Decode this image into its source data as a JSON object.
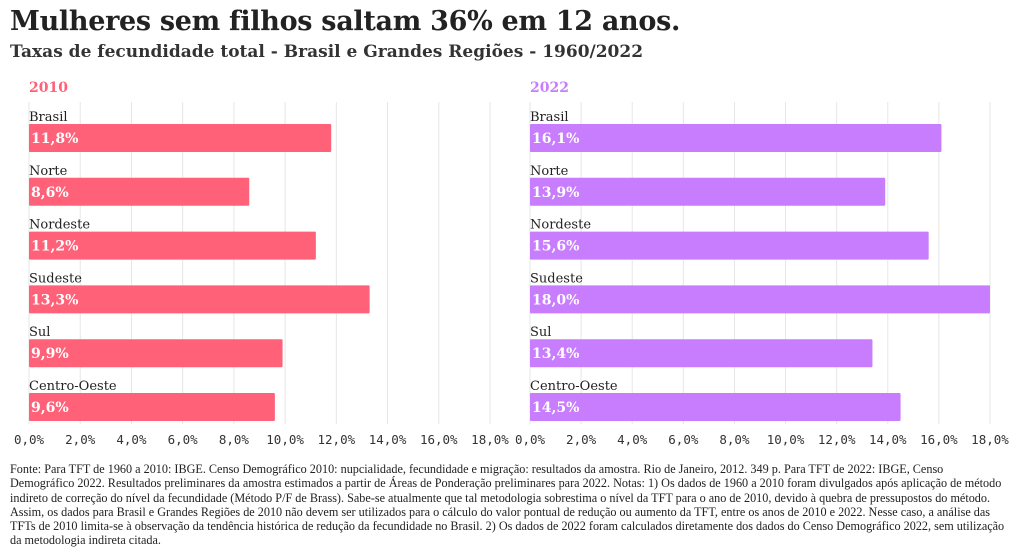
{
  "title": "Mulheres sem filhos saltam 36% em 12 anos.",
  "subtitle": "Taxas de fecundidade total - Brasil e Grandes Regiões - 1960/2022",
  "chart_data": [
    {
      "type": "bar",
      "orientation": "horizontal",
      "title": "2010",
      "categories": [
        "Brasil",
        "Norte",
        "Nordeste",
        "Sudeste",
        "Sul",
        "Centro-Oeste"
      ],
      "values": [
        11.8,
        8.6,
        11.2,
        13.3,
        9.9,
        9.6
      ],
      "value_labels": [
        "11,8%",
        "8,6%",
        "11,2%",
        "13,3%",
        "9,9%",
        "9,6%"
      ],
      "xlim": [
        0,
        18
      ],
      "ticks": [
        "0,0%",
        "2,0%",
        "4,0%",
        "6,0%",
        "8,0%",
        "10,0%",
        "12,0%",
        "14,0%",
        "16,0%",
        "18,0%"
      ],
      "grid": true,
      "color": "#ff6178"
    },
    {
      "type": "bar",
      "orientation": "horizontal",
      "title": "2022",
      "categories": [
        "Brasil",
        "Norte",
        "Nordeste",
        "Sudeste",
        "Sul",
        "Centro-Oeste"
      ],
      "values": [
        16.1,
        13.9,
        15.6,
        18.0,
        13.4,
        14.5
      ],
      "value_labels": [
        "16,1%",
        "13,9%",
        "15,6%",
        "18,0%",
        "13,4%",
        "14,5%"
      ],
      "xlim": [
        0,
        18
      ],
      "ticks": [
        "0,0%",
        "2,0%",
        "4,0%",
        "6,0%",
        "8,0%",
        "10,0%",
        "12,0%",
        "14,0%",
        "16,0%",
        "18,0%"
      ],
      "grid": true,
      "color": "#c77dfd"
    }
  ],
  "source": "Fonte: Para TFT de 1960 a 2010: IBGE. Censo Demográfico 2010: nupcialidade, fecundidade e migração: resultados da amostra. Rio de Janeiro, 2012. 349 p. Para TFT de 2022: IBGE, Censo Demográfico 2022. Resultados preliminares da amostra estimados a partir de Áreas de Ponderação preliminares para 2022. Notas: 1) Os dados de 1960 a 2010 foram divulgados após aplicação de método indireto de correção do nível da fecundidade (Método P/F de Brass). Sabe-se atualmente que tal metodologia sobrestima o nível da TFT para o ano de 2010, devido à quebra de pressupostos do método. Assim, os dados para Brasil e Grandes Regiões de 2010 não devem ser utilizados para o cálculo do valor pontual de redução ou aumento da TFT, entre os anos de 2010 e 2022. Nesse caso, a análise das TFTs de 2010 limita-se à observação da tendência histórica de redução da fecundidade no Brasil. 2) Os dados de 2022 foram calculados diretamente dos dados do Censo Demográfico 2022, sem utilização da metodologia indireta citada."
}
